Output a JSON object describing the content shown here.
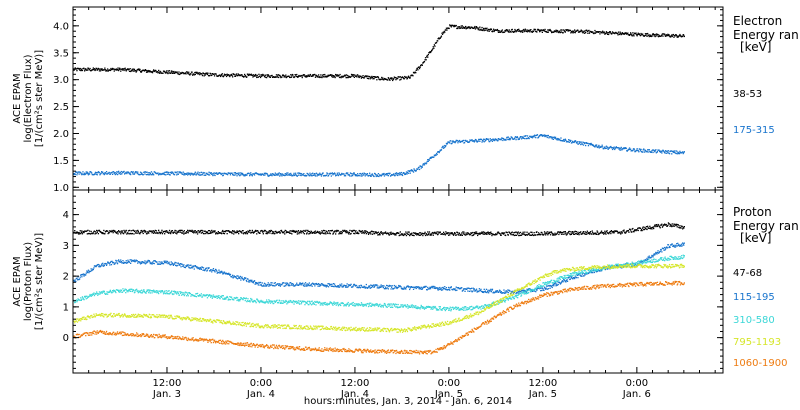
{
  "x_axis": {
    "ticks": [
      {
        "time": "12:00",
        "date": "Jan. 3",
        "hours": 12
      },
      {
        "time": "0:00",
        "date": "Jan. 4",
        "hours": 24
      },
      {
        "time": "12:00",
        "date": "Jan. 4",
        "hours": 36
      },
      {
        "time": "0:00",
        "date": "Jan. 5",
        "hours": 48
      },
      {
        "time": "12:00",
        "date": "Jan. 5",
        "hours": 60
      },
      {
        "time": "0:00",
        "date": "Jan. 6",
        "hours": 72
      }
    ],
    "label": "hours:minutes, Jan.  3, 2014 - Jan.  6, 2014"
  },
  "chart_data": [
    {
      "type": "scatter",
      "panel": "electron",
      "title": "",
      "ylabel": [
        "ACE EPAM",
        "log(Electron Flux)",
        "[1/(cm²s ster MeV)]"
      ],
      "xlim": [
        0,
        83
      ],
      "ylim": [
        0.95,
        4.35
      ],
      "yticks": [
        "1.0",
        "1.5",
        "2.0",
        "2.5",
        "3.0",
        "3.5",
        "4.0"
      ],
      "ytick_values": [
        1.0,
        1.5,
        2.0,
        2.5,
        3.0,
        3.5,
        4.0
      ],
      "legend_title": [
        "Electron",
        "Energy ran",
        "[keV]"
      ],
      "series": [
        {
          "name": "38-53",
          "color": "#000000",
          "x": [
            0,
            6,
            12,
            18,
            24,
            30,
            36,
            40,
            43,
            44.5,
            46,
            47,
            48,
            51,
            54,
            60,
            66,
            72,
            78
          ],
          "y": [
            3.2,
            3.2,
            3.15,
            3.1,
            3.08,
            3.08,
            3.08,
            3.02,
            3.05,
            3.3,
            3.62,
            3.85,
            4.0,
            3.98,
            3.92,
            3.92,
            3.9,
            3.85,
            3.82
          ]
        },
        {
          "name": "175-315",
          "color": "#1874cd",
          "x": [
            0,
            6,
            12,
            18,
            24,
            30,
            36,
            40,
            42,
            44,
            46,
            48,
            52,
            56,
            60,
            64,
            68,
            72,
            78
          ],
          "y": [
            1.27,
            1.28,
            1.27,
            1.26,
            1.25,
            1.25,
            1.25,
            1.24,
            1.26,
            1.35,
            1.6,
            1.85,
            1.88,
            1.92,
            1.97,
            1.85,
            1.75,
            1.7,
            1.65
          ]
        }
      ]
    },
    {
      "type": "scatter",
      "panel": "proton",
      "title": "",
      "ylabel": [
        "ACE EPAM",
        "log(Proton Flux)",
        "[1/(cm²s ster MeV)]"
      ],
      "xlim": [
        0,
        83
      ],
      "ylim": [
        -1.15,
        4.8
      ],
      "yticks": [
        "0",
        "1",
        "2",
        "3",
        "4"
      ],
      "ytick_values": [
        0,
        1,
        2,
        3,
        4
      ],
      "legend_title": [
        "Proton",
        "Energy ran",
        "[keV]"
      ],
      "series": [
        {
          "name": "47-68",
          "color": "#000000",
          "x": [
            0,
            10,
            20,
            30,
            36,
            40,
            50,
            60,
            70,
            76,
            78
          ],
          "y": [
            3.45,
            3.45,
            3.45,
            3.45,
            3.45,
            3.4,
            3.4,
            3.4,
            3.45,
            3.7,
            3.6
          ]
        },
        {
          "name": "115-195",
          "color": "#1874cd",
          "x": [
            0,
            3,
            6,
            12,
            18,
            22,
            24,
            30,
            36,
            42,
            48,
            52,
            56,
            60,
            64,
            68,
            72,
            76,
            78
          ],
          "y": [
            1.85,
            2.35,
            2.5,
            2.45,
            2.2,
            1.9,
            1.75,
            1.75,
            1.7,
            1.65,
            1.62,
            1.55,
            1.5,
            1.6,
            2.0,
            2.3,
            2.4,
            3.0,
            3.05
          ]
        },
        {
          "name": "310-580",
          "color": "#3cd7d7",
          "x": [
            0,
            3,
            6,
            12,
            18,
            24,
            30,
            36,
            42,
            48,
            52,
            56,
            60,
            64,
            68,
            72,
            76,
            78
          ],
          "y": [
            1.2,
            1.45,
            1.55,
            1.5,
            1.35,
            1.2,
            1.15,
            1.1,
            1.05,
            0.95,
            1.0,
            1.3,
            1.75,
            2.1,
            2.3,
            2.45,
            2.6,
            2.65
          ]
        },
        {
          "name": "795-1193",
          "color": "#d6e62a",
          "x": [
            0,
            3,
            6,
            12,
            18,
            24,
            30,
            36,
            42,
            48,
            52,
            56,
            60,
            62,
            66,
            70,
            74,
            78
          ],
          "y": [
            0.55,
            0.75,
            0.75,
            0.7,
            0.55,
            0.4,
            0.35,
            0.3,
            0.25,
            0.5,
            0.85,
            1.45,
            2.0,
            2.2,
            2.3,
            2.35,
            2.35,
            2.35
          ]
        },
        {
          "name": "1060-1900",
          "color": "#ee7c12",
          "x": [
            0,
            3,
            6,
            12,
            18,
            24,
            30,
            36,
            42,
            46,
            48,
            52,
            56,
            60,
            64,
            68,
            72,
            78
          ],
          "y": [
            0.05,
            0.2,
            0.15,
            0.05,
            -0.1,
            -0.25,
            -0.35,
            -0.4,
            -0.45,
            -0.45,
            -0.2,
            0.4,
            1.0,
            1.4,
            1.6,
            1.7,
            1.75,
            1.8
          ]
        }
      ]
    }
  ]
}
